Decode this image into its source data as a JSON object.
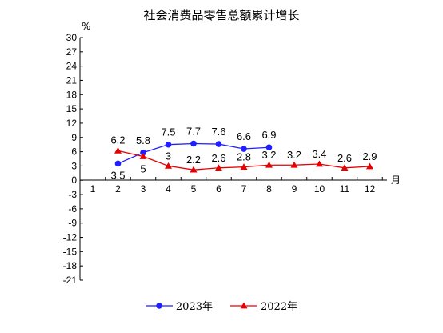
{
  "chart_data": {
    "type": "line",
    "title": "社会消费品零售总额累计增长",
    "ylabel": "%",
    "xlabel": "月",
    "categories": [
      "1",
      "2",
      "3",
      "4",
      "5",
      "6",
      "7",
      "8",
      "9",
      "10",
      "11",
      "12"
    ],
    "ylim": [
      -21,
      30
    ],
    "yticks": [
      30,
      27,
      24,
      21,
      18,
      15,
      12,
      9,
      6,
      3,
      0,
      -3,
      -6,
      -9,
      -12,
      -15,
      -18,
      -21
    ],
    "grid": false,
    "legend_position": "bottom",
    "series": [
      {
        "name": "2023年",
        "color": "#1f1fff",
        "marker": "circle",
        "values": [
          null,
          3.5,
          5.8,
          7.5,
          7.7,
          7.6,
          6.6,
          6.9,
          null,
          null,
          null,
          null
        ],
        "labels": [
          null,
          "3.5",
          "5.8",
          "7.5",
          "7.7",
          "7.6",
          "6.6",
          "6.9",
          null,
          null,
          null,
          null
        ]
      },
      {
        "name": "2022年",
        "color": "#e60000",
        "marker": "triangle",
        "values": [
          null,
          6.2,
          5,
          3,
          2.2,
          2.6,
          2.8,
          3.2,
          3.2,
          3.4,
          2.6,
          2.9
        ],
        "labels": [
          null,
          "6.2",
          "5",
          "3",
          "2.2",
          "2.6",
          "2.8",
          "3.2",
          "3.2",
          "3.4",
          "2.6",
          "2.9"
        ]
      }
    ]
  }
}
